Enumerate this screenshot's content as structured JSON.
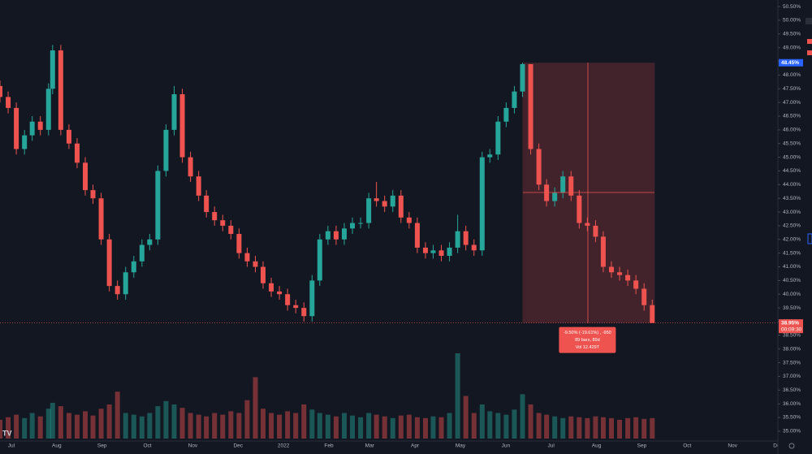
{
  "chart_data": {
    "type": "candlestick",
    "x": [
      -0.25,
      -0.07,
      0.11,
      0.29,
      0.46,
      0.64,
      0.82,
      0.91,
      1.09,
      1.27,
      1.45,
      1.63,
      1.8,
      1.98,
      2.16,
      2.34,
      2.52,
      2.7,
      2.88,
      3.05,
      3.23,
      3.41,
      3.59,
      3.77,
      3.95,
      4.13,
      4.3,
      4.48,
      4.66,
      4.84,
      5.02,
      5.2,
      5.38,
      5.55,
      5.73,
      5.91,
      6.09,
      6.27,
      6.45,
      6.63,
      6.8,
      6.98,
      7.16,
      7.34,
      7.52,
      7.7,
      7.88,
      8.05,
      8.23,
      8.41,
      8.59,
      8.77,
      8.95,
      9.13,
      9.3,
      9.48,
      9.66,
      9.84,
      10.02,
      10.2,
      10.38,
      10.55,
      10.73,
      10.91,
      11.09,
      11.27,
      11.45,
      11.63,
      11.8,
      11.98,
      12.16,
      12.34,
      12.52,
      12.7,
      12.88,
      13.05,
      13.23,
      13.41,
      13.59,
      13.77,
      13.95,
      14.13
    ],
    "open": [
      47.6,
      47.2,
      46.8,
      45.3,
      45.8,
      46.3,
      46.0,
      47.5,
      48.9,
      46.0,
      45.5,
      44.8,
      43.8,
      43.5,
      42.0,
      40.3,
      40.0,
      40.8,
      41.2,
      41.8,
      42.0,
      44.5,
      46.0,
      47.3,
      45.0,
      44.3,
      43.6,
      43.0,
      42.7,
      42.5,
      42.2,
      41.5,
      41.2,
      41.0,
      40.4,
      40.1,
      40.0,
      39.6,
      39.5,
      39.2,
      40.5,
      42.0,
      42.3,
      42.0,
      42.4,
      42.6,
      42.6,
      43.5,
      43.4,
      43.2,
      43.6,
      42.8,
      42.6,
      41.7,
      41.5,
      41.6,
      41.4,
      41.7,
      42.3,
      41.8,
      41.6,
      45.0,
      45.1,
      46.3,
      46.8,
      47.4,
      48.4,
      45.3,
      44.0,
      43.4,
      43.7,
      44.3,
      43.6,
      42.6,
      42.5,
      42.1,
      41.0,
      40.8,
      40.7,
      40.5,
      40.2,
      39.6
    ],
    "high": [
      47.8,
      47.4,
      47.0,
      46.0,
      46.5,
      46.5,
      47.7,
      49.1,
      49.1,
      46.2,
      45.7,
      45.0,
      44.0,
      43.7,
      42.2,
      40.5,
      41.0,
      41.4,
      42.0,
      42.2,
      44.7,
      46.2,
      47.6,
      47.5,
      45.2,
      44.5,
      43.8,
      43.2,
      42.9,
      42.7,
      42.4,
      41.7,
      41.4,
      41.2,
      40.6,
      40.3,
      40.2,
      39.8,
      39.7,
      40.7,
      42.2,
      42.5,
      42.5,
      42.6,
      42.8,
      42.8,
      43.7,
      44.1,
      43.6,
      43.8,
      43.8,
      43.0,
      42.8,
      41.9,
      41.8,
      41.8,
      41.9,
      42.9,
      42.5,
      42.0,
      45.2,
      45.3,
      46.5,
      47.0,
      47.6,
      48.45,
      48.4,
      45.5,
      44.2,
      43.9,
      44.5,
      44.5,
      43.8,
      42.8,
      42.7,
      42.3,
      41.2,
      41.0,
      40.9,
      40.7,
      40.4,
      39.8
    ],
    "low": [
      47.0,
      46.6,
      45.1,
      45.1,
      45.6,
      45.8,
      45.8,
      47.3,
      45.8,
      45.3,
      44.6,
      43.6,
      43.3,
      41.8,
      40.1,
      39.8,
      39.8,
      40.6,
      41.0,
      41.6,
      41.8,
      44.3,
      45.8,
      44.8,
      44.1,
      43.4,
      42.8,
      42.5,
      42.3,
      42.0,
      41.3,
      41.0,
      40.8,
      40.2,
      39.9,
      39.8,
      39.4,
      39.3,
      39.0,
      39.0,
      40.3,
      41.8,
      41.8,
      41.8,
      42.2,
      42.4,
      42.4,
      43.2,
      43.0,
      43.0,
      42.6,
      42.4,
      41.5,
      41.3,
      41.3,
      41.2,
      41.2,
      41.5,
      41.6,
      41.4,
      41.4,
      44.8,
      44.9,
      46.1,
      46.6,
      47.2,
      45.1,
      43.8,
      43.2,
      43.2,
      43.5,
      43.4,
      42.4,
      42.3,
      41.9,
      40.8,
      40.6,
      40.5,
      40.3,
      40.0,
      39.4,
      38.95
    ],
    "close": [
      47.2,
      46.8,
      45.3,
      45.8,
      46.3,
      46.0,
      47.5,
      48.9,
      46.0,
      45.5,
      44.8,
      43.8,
      43.5,
      42.0,
      40.3,
      40.0,
      40.8,
      41.2,
      41.8,
      42.0,
      44.5,
      46.0,
      47.3,
      45.0,
      44.3,
      43.6,
      43.0,
      42.7,
      42.5,
      42.2,
      41.5,
      41.2,
      41.0,
      40.4,
      40.1,
      40.0,
      39.6,
      39.5,
      39.2,
      40.5,
      42.0,
      42.3,
      42.0,
      42.4,
      42.6,
      42.6,
      43.5,
      43.4,
      43.2,
      43.6,
      42.8,
      42.6,
      41.7,
      41.5,
      41.6,
      41.4,
      41.7,
      42.3,
      41.8,
      41.6,
      45.0,
      45.1,
      46.3,
      46.8,
      47.4,
      48.4,
      45.3,
      44.0,
      43.4,
      43.7,
      44.3,
      43.6,
      42.6,
      42.5,
      42.1,
      41.0,
      40.8,
      40.7,
      40.5,
      40.2,
      39.6,
      38.95
    ],
    "volume": [
      22,
      25,
      28,
      24,
      30,
      26,
      35,
      42,
      38,
      30,
      28,
      32,
      27,
      35,
      40,
      55,
      30,
      28,
      26,
      30,
      38,
      44,
      40,
      36,
      30,
      28,
      26,
      30,
      28,
      32,
      30,
      45,
      72,
      35,
      30,
      28,
      32,
      30,
      40,
      34,
      30,
      28,
      26,
      30,
      27,
      25,
      30,
      28,
      26,
      24,
      27,
      28,
      25,
      24,
      26,
      25,
      30,
      100,
      50,
      30,
      40,
      32,
      30,
      28,
      34,
      52,
      40,
      30,
      28,
      26,
      24,
      26,
      25,
      24,
      26,
      25,
      24,
      22,
      24,
      25,
      23,
      24
    ],
    "up_color": "#26a69a",
    "down_color": "#ef5350",
    "xlim": [
      -0.25,
      16.9
    ],
    "xticks": [
      {
        "value": 0,
        "label": "Jul"
      },
      {
        "value": 1,
        "label": "Aug"
      },
      {
        "value": 2,
        "label": "Sep"
      },
      {
        "value": 3,
        "label": "Oct"
      },
      {
        "value": 4,
        "label": "Nov"
      },
      {
        "value": 5,
        "label": "Dec"
      },
      {
        "value": 6,
        "label": "2022"
      },
      {
        "value": 7,
        "label": "Feb"
      },
      {
        "value": 7.9,
        "label": "Mar"
      },
      {
        "value": 8.9,
        "label": "Apr"
      },
      {
        "value": 9.9,
        "label": "May"
      },
      {
        "value": 10.9,
        "label": "Jun"
      },
      {
        "value": 11.9,
        "label": "Jul"
      },
      {
        "value": 12.9,
        "label": "Aug"
      },
      {
        "value": 13.9,
        "label": "Sep"
      },
      {
        "value": 14.9,
        "label": "Oct"
      },
      {
        "value": 15.9,
        "label": "Nov"
      },
      {
        "value": 16.9,
        "label": "Dec"
      }
    ],
    "ylim": [
      34.73,
      50.74
    ],
    "yticks": [
      {
        "value": 50.5,
        "label": "50.50%"
      },
      {
        "value": 50,
        "label": "50.00%"
      },
      {
        "value": 49.5,
        "label": "49.50%"
      },
      {
        "value": 49,
        "label": "49.00%"
      },
      {
        "value": 48.5,
        "label": "48.50%"
      },
      {
        "value": 48,
        "label": "48.00%"
      },
      {
        "value": 47.5,
        "label": "47.50%"
      },
      {
        "value": 47,
        "label": "47.00%"
      },
      {
        "value": 46.5,
        "label": "46.50%"
      },
      {
        "value": 46,
        "label": "46.00%"
      },
      {
        "value": 45.5,
        "label": "45.50%"
      },
      {
        "value": 45,
        "label": "45.00%"
      },
      {
        "value": 44.5,
        "label": "44.50%"
      },
      {
        "value": 44,
        "label": "44.00%"
      },
      {
        "value": 43.5,
        "label": "43.50%"
      },
      {
        "value": 43,
        "label": "43.00%"
      },
      {
        "value": 42.5,
        "label": "42.50%"
      },
      {
        "value": 42,
        "label": "42.00%"
      },
      {
        "value": 41.5,
        "label": "41.50%"
      },
      {
        "value": 41,
        "label": "41.00%"
      },
      {
        "value": 40.5,
        "label": "40.50%"
      },
      {
        "value": 40,
        "label": "40.00%"
      },
      {
        "value": 39.5,
        "label": "39.50%"
      },
      {
        "value": 39,
        "label": "39.00%"
      },
      {
        "value": 38.5,
        "label": "38.50%"
      },
      {
        "value": 38,
        "label": "38.00%"
      },
      {
        "value": 37.5,
        "label": "37.50%"
      },
      {
        "value": 37,
        "label": "37.00%"
      },
      {
        "value": 36.5,
        "label": "36.50%"
      },
      {
        "value": 36,
        "label": "36.00%"
      },
      {
        "value": 35.5,
        "label": "35.50%"
      },
      {
        "value": 35,
        "label": "35.00%"
      }
    ],
    "price_labels": [
      {
        "value": 48.45,
        "label": "48.45%"
      },
      {
        "value": 38.95,
        "label": "38.95%"
      }
    ],
    "countdown": "00:09:30",
    "measure_lines": [
      "-9.50% (-19.61%) , -950",
      "89 bars, 89d",
      "Vol 12.429T"
    ]
  }
}
